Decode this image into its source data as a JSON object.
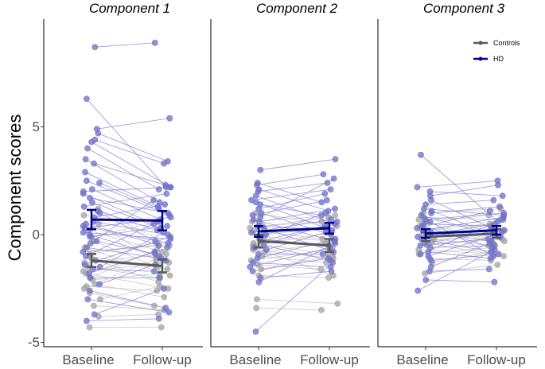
{
  "chart_data": {
    "type": "scatter",
    "ylabel": "Component scores",
    "xlabel": "",
    "categories": [
      "Baseline",
      "Follow-up"
    ],
    "ylim": [
      -5.2,
      10
    ],
    "yticks": [
      -5,
      0,
      5
    ],
    "legend": {
      "position": "top-right",
      "entries": [
        {
          "name": "Controls",
          "color": "#595959"
        },
        {
          "name": "HD",
          "color": "#00008b"
        }
      ]
    },
    "point_colors": {
      "Controls": "#a3a3a3",
      "HD": "#6f6fc9"
    },
    "line_colors": {
      "Controls": "#bdbdbd",
      "HD": "#7f7fd0"
    },
    "panels": [
      {
        "title": "Component 1",
        "summary": {
          "Controls": {
            "mean": [
              -1.2,
              -1.45
            ],
            "err": [
              0.3,
              0.3
            ]
          },
          "HD": {
            "mean": [
              0.7,
              0.65
            ],
            "err": [
              0.45,
              0.45
            ]
          }
        },
        "subjects": {
          "Controls": [
            [
              1.2,
              -0.5
            ],
            [
              0.9,
              0.3
            ],
            [
              0.5,
              -1.2
            ],
            [
              0.2,
              -0.8
            ],
            [
              -0.3,
              -1.5
            ],
            [
              -0.6,
              -1.9
            ],
            [
              -0.9,
              -0.4
            ],
            [
              -1.1,
              -2.2
            ],
            [
              -1.3,
              -0.9
            ],
            [
              -1.5,
              -2.0
            ],
            [
              -1.7,
              -1.3
            ],
            [
              -1.8,
              -2.5
            ],
            [
              -2.0,
              -0.7
            ],
            [
              -2.1,
              -1.8
            ],
            [
              -2.3,
              -2.9
            ],
            [
              -2.5,
              -1.1
            ],
            [
              -2.7,
              -3.3
            ],
            [
              -3.0,
              -2.4
            ],
            [
              -3.3,
              -3.5
            ],
            [
              -3.8,
              -3.7
            ],
            [
              -4.3,
              -4.3
            ],
            [
              -1.0,
              -1.6
            ],
            [
              -0.1,
              0.6
            ],
            [
              -2.4,
              -2.6
            ]
          ],
          "HD": [
            [
              8.7,
              8.9
            ],
            [
              6.3,
              2.2
            ],
            [
              4.9,
              5.4
            ],
            [
              4.7,
              3.4
            ],
            [
              4.4,
              3.3
            ],
            [
              4.3,
              2.2
            ],
            [
              4.0,
              2.1
            ],
            [
              3.5,
              1.5
            ],
            [
              3.3,
              2.3
            ],
            [
              2.5,
              0.9
            ],
            [
              2.4,
              1.2
            ],
            [
              2.1,
              0.7
            ],
            [
              2.0,
              2.2
            ],
            [
              1.7,
              1.0
            ],
            [
              1.5,
              0.3
            ],
            [
              1.3,
              1.9
            ],
            [
              1.1,
              0.2
            ],
            [
              1.0,
              -0.3
            ],
            [
              0.8,
              1.4
            ],
            [
              0.6,
              0.0
            ],
            [
              0.5,
              -0.6
            ],
            [
              0.3,
              0.8
            ],
            [
              0.1,
              -0.2
            ],
            [
              -0.1,
              0.4
            ],
            [
              -0.3,
              -0.9
            ],
            [
              -0.4,
              1.6
            ],
            [
              -0.6,
              -1.1
            ],
            [
              -0.8,
              -0.5
            ],
            [
              -1.0,
              0.6
            ],
            [
              -1.2,
              -1.4
            ],
            [
              -1.4,
              -0.1
            ],
            [
              -1.6,
              -1.7
            ],
            [
              -1.8,
              -0.8
            ],
            [
              -2.0,
              -2.0
            ],
            [
              -2.3,
              -1.2
            ],
            [
              -2.6,
              -3.4
            ],
            [
              -3.0,
              -3.6
            ],
            [
              -3.7,
              -2.5
            ],
            [
              -4.0,
              -3.9
            ],
            [
              0.4,
              -0.4
            ],
            [
              1.9,
              0.5
            ],
            [
              2.9,
              1.3
            ],
            [
              -1.5,
              0.1
            ],
            [
              0.0,
              -1.0
            ]
          ]
        }
      },
      {
        "title": "Component 2",
        "summary": {
          "Controls": {
            "mean": [
              -0.3,
              -0.5
            ],
            "err": [
              0.3,
              0.3
            ]
          },
          "HD": {
            "mean": [
              0.15,
              0.3
            ],
            "err": [
              0.25,
              0.25
            ]
          }
        },
        "subjects": {
          "Controls": [
            [
              0.6,
              0.9
            ],
            [
              0.4,
              0.6
            ],
            [
              0.2,
              -0.2
            ],
            [
              0.0,
              0.3
            ],
            [
              -0.2,
              -0.6
            ],
            [
              -0.4,
              -0.9
            ],
            [
              -0.5,
              0.1
            ],
            [
              -0.7,
              -1.1
            ],
            [
              -0.8,
              -0.4
            ],
            [
              -1.0,
              -1.3
            ],
            [
              -1.2,
              -0.7
            ],
            [
              -1.4,
              -1.6
            ],
            [
              -1.6,
              -1.0
            ],
            [
              -1.9,
              -2.0
            ],
            [
              -3.0,
              -3.2
            ],
            [
              -3.4,
              -3.5
            ],
            [
              -0.1,
              -0.3
            ],
            [
              0.3,
              0.8
            ],
            [
              -0.6,
              -1.9
            ],
            [
              1.0,
              0.4
            ]
          ],
          "HD": [
            [
              3.0,
              3.5
            ],
            [
              2.4,
              1.5
            ],
            [
              2.3,
              2.8
            ],
            [
              2.1,
              1.1
            ],
            [
              2.0,
              2.4
            ],
            [
              1.8,
              0.5
            ],
            [
              1.6,
              2.1
            ],
            [
              1.4,
              0.9
            ],
            [
              1.2,
              1.9
            ],
            [
              1.0,
              0.0
            ],
            [
              0.9,
              1.6
            ],
            [
              0.7,
              -0.3
            ],
            [
              0.6,
              1.2
            ],
            [
              0.4,
              0.2
            ],
            [
              0.3,
              -0.8
            ],
            [
              0.1,
              0.7
            ],
            [
              0.0,
              1.0
            ],
            [
              -0.2,
              -0.5
            ],
            [
              -0.3,
              0.4
            ],
            [
              -0.5,
              -1.2
            ],
            [
              -0.7,
              0.1
            ],
            [
              -0.9,
              -0.9
            ],
            [
              -1.1,
              -0.2
            ],
            [
              -1.3,
              -1.5
            ],
            [
              -1.5,
              -0.6
            ],
            [
              -1.7,
              -1.1
            ],
            [
              -2.0,
              -1.7
            ],
            [
              -2.2,
              -0.4
            ],
            [
              -4.5,
              -1.3
            ],
            [
              0.8,
              2.6
            ],
            [
              1.5,
              0.3
            ],
            [
              -0.6,
              0.6
            ]
          ]
        }
      },
      {
        "title": "Component 3",
        "summary": {
          "Controls": {
            "mean": [
              -0.1,
              0.05
            ],
            "err": [
              0.2,
              0.2
            ]
          },
          "HD": {
            "mean": [
              0.05,
              0.2
            ],
            "err": [
              0.2,
              0.2
            ]
          }
        },
        "subjects": {
          "Controls": [
            [
              1.0,
              1.2
            ],
            [
              0.8,
              0.7
            ],
            [
              0.6,
              0.9
            ],
            [
              0.4,
              -0.3
            ],
            [
              0.2,
              0.5
            ],
            [
              0.0,
              0.2
            ],
            [
              -0.2,
              -0.5
            ],
            [
              -0.3,
              0.3
            ],
            [
              -0.5,
              -0.2
            ],
            [
              -0.7,
              -0.9
            ],
            [
              -0.9,
              -0.6
            ],
            [
              -1.1,
              -1.2
            ],
            [
              -1.3,
              -0.8
            ],
            [
              -1.8,
              -1.4
            ],
            [
              0.7,
              -0.4
            ],
            [
              -0.4,
              -1.0
            ]
          ],
          "HD": [
            [
              3.7,
              0.6
            ],
            [
              2.2,
              2.5
            ],
            [
              2.0,
              1.8
            ],
            [
              1.8,
              2.3
            ],
            [
              1.6,
              0.3
            ],
            [
              1.4,
              1.6
            ],
            [
              1.2,
              0.9
            ],
            [
              1.0,
              1.3
            ],
            [
              0.9,
              -0.1
            ],
            [
              0.7,
              1.0
            ],
            [
              0.5,
              0.4
            ],
            [
              0.4,
              -0.6
            ],
            [
              0.2,
              0.8
            ],
            [
              0.1,
              -0.3
            ],
            [
              -0.1,
              0.5
            ],
            [
              -0.2,
              -0.8
            ],
            [
              -0.4,
              0.2
            ],
            [
              -0.6,
              -0.5
            ],
            [
              -0.8,
              -1.1
            ],
            [
              -1.0,
              0.1
            ],
            [
              -1.2,
              -0.9
            ],
            [
              -1.5,
              -0.4
            ],
            [
              -1.7,
              -1.6
            ],
            [
              -2.1,
              -2.2
            ],
            [
              -2.6,
              -0.7
            ],
            [
              0.3,
              1.1
            ],
            [
              -0.5,
              -0.2
            ],
            [
              0.6,
              -1.0
            ],
            [
              1.1,
              0.0
            ],
            [
              -0.9,
              0.7
            ]
          ]
        }
      }
    ]
  }
}
